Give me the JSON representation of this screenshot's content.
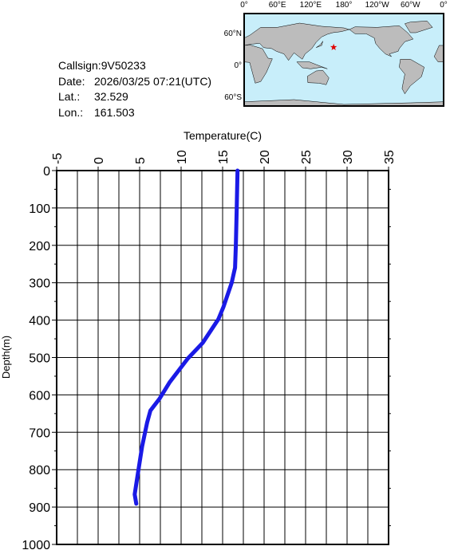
{
  "info": {
    "callsign": "Callsign:9V50233",
    "date_label": "Date:",
    "date": "2026/03/25 07:21(UTC)",
    "lat_label": "Lat.:",
    "lat": 32.529,
    "lon_label": "Lon.:",
    "lon": 161.503
  },
  "map": {
    "xlabels": [
      "0°",
      "60°E",
      "120°E",
      "180°",
      "120°W",
      "60°W",
      "0°"
    ],
    "ylabels": [
      "60°N",
      "0°",
      "60°S"
    ]
  },
  "chart_data": {
    "type": "line",
    "title": "Temperature(C)",
    "y_label": "Depth(m)",
    "x": [
      16.8,
      16.7,
      16.6,
      16.5,
      16.4,
      16.1,
      15.1,
      14.5,
      12.6,
      10.8,
      8.6,
      7.4,
      6.3,
      5.9,
      5.3,
      4.7,
      4.4,
      4.6
    ],
    "series": [
      {
        "name": "Depth(m)",
        "color": "#1a1ae6",
        "values": [
          0,
          100,
          200,
          260,
          269,
          300,
          365,
          397,
          461,
          503,
          567,
          610,
          642,
          674,
          738,
          823,
          866,
          891
        ]
      }
    ],
    "xlim": [
      -5,
      35
    ],
    "xticks": [
      -5,
      0,
      5,
      10,
      15,
      20,
      25,
      30,
      35
    ],
    "xminorticks": [
      -2.5,
      2.5,
      7.5,
      12.5,
      17.5,
      22.5,
      27.5,
      32.5
    ],
    "ylim": [
      1000,
      0
    ],
    "yticks": [
      0,
      100,
      200,
      300,
      400,
      500,
      600,
      700,
      800,
      900,
      1000
    ],
    "yminorticks": [
      50,
      150,
      250,
      350,
      450,
      550,
      650,
      750,
      850,
      950
    ],
    "grid": true
  }
}
